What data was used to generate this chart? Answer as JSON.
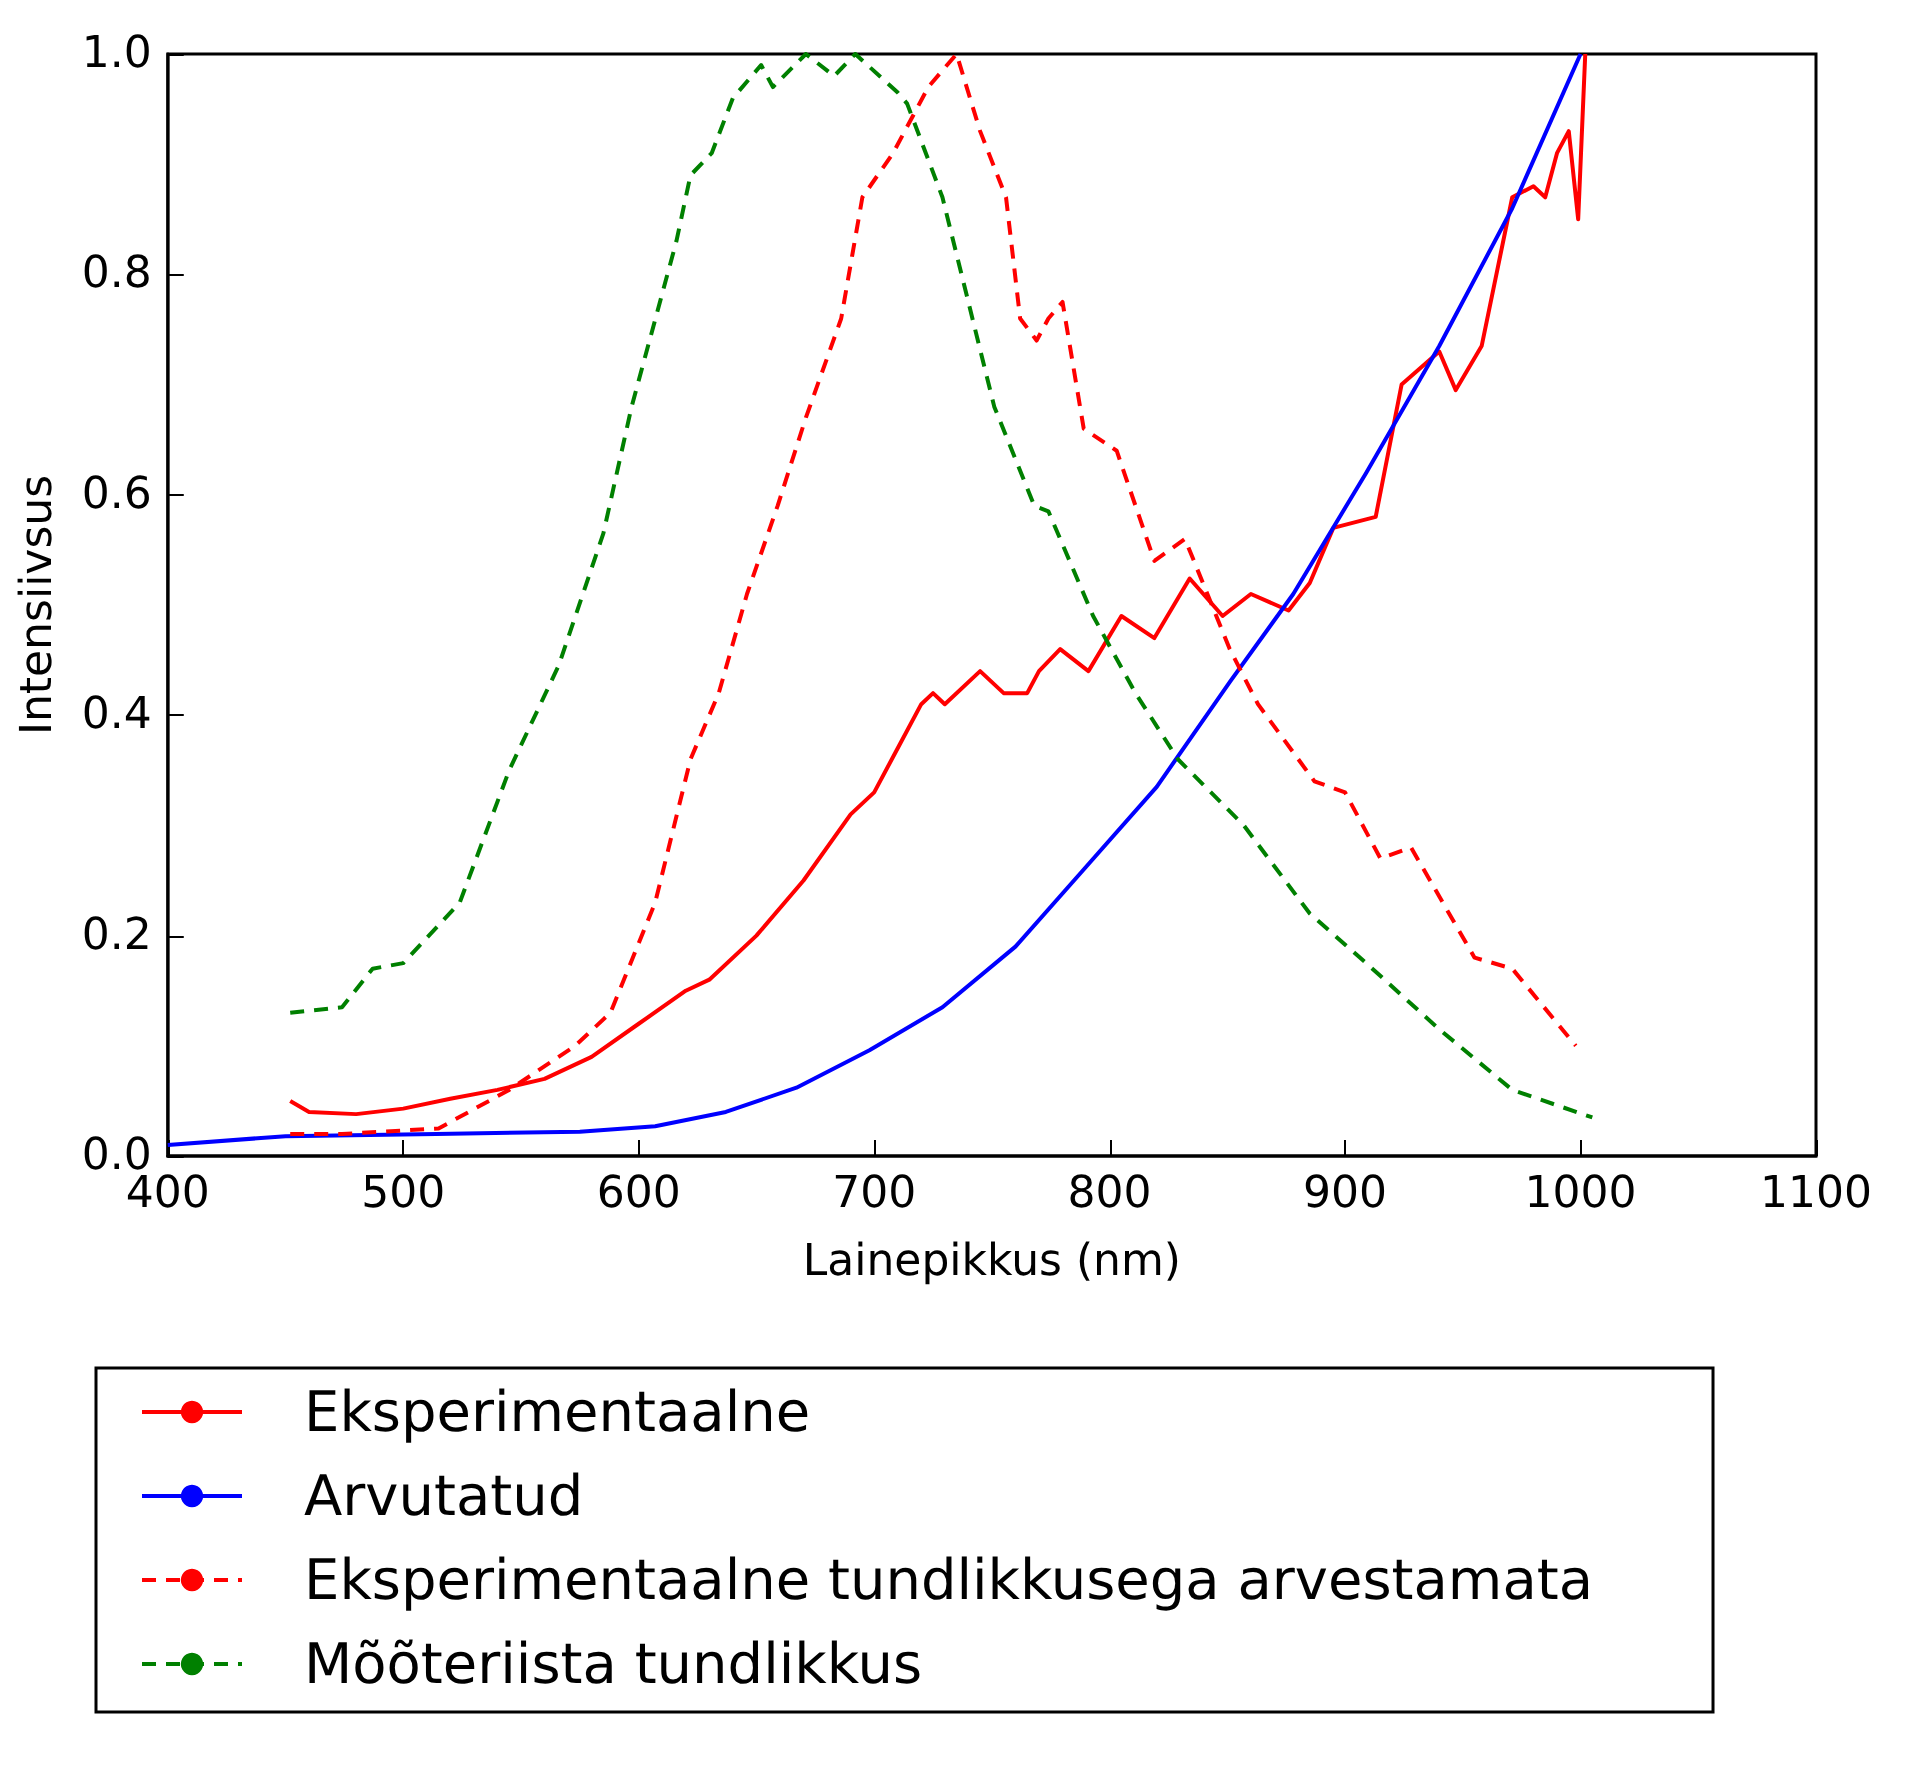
{
  "chart_data": {
    "type": "line",
    "xlabel": "Lainepikkus (nm)",
    "ylabel": "Intensiivsus",
    "xlim": [
      400,
      1100
    ],
    "xticks": [
      400,
      500,
      600,
      700,
      800,
      900,
      1000,
      1100
    ],
    "ylim": [
      0,
      1
    ],
    "yticks": [
      {
        "value": 0,
        "label": "0.0"
      },
      {
        "value": 0.2,
        "label": "0.2"
      },
      {
        "value": 0.4,
        "label": "0.4"
      },
      {
        "value": 0.6,
        "label": "0.6"
      },
      {
        "value": 0.8,
        "label": "0.8"
      },
      {
        "value": 1,
        "label": "1.0"
      }
    ],
    "grid": false,
    "legend": "bottom",
    "marker": "none",
    "series": [
      {
        "name": "Eksperimentaalne",
        "color": "#ff0000",
        "line_style": "solid",
        "x": [
          452,
          460,
          480,
          500,
          520,
          540,
          560,
          580,
          600,
          620,
          630,
          650,
          670,
          690,
          700,
          710,
          720,
          725,
          730,
          745,
          755,
          765,
          770,
          779,
          791,
          805,
          819,
          834,
          848,
          860,
          876,
          885,
          895,
          913,
          924,
          940,
          947,
          958,
          971,
          980,
          985,
          990,
          995,
          999,
          1002
        ],
        "values": [
          0.05,
          0.04,
          0.038,
          0.043,
          0.052,
          0.06,
          0.07,
          0.09,
          0.12,
          0.15,
          0.16,
          0.2,
          0.25,
          0.31,
          0.33,
          0.37,
          0.41,
          0.42,
          0.41,
          0.44,
          0.42,
          0.42,
          0.44,
          0.46,
          0.44,
          0.49,
          0.47,
          0.524,
          0.49,
          0.51,
          0.495,
          0.52,
          0.57,
          0.58,
          0.7,
          0.73,
          0.695,
          0.735,
          0.87,
          0.88,
          0.87,
          0.91,
          0.93,
          0.85,
          1.0
        ]
      },
      {
        "name": "Arvutatud",
        "color": "#0000ff",
        "line_style": "solid",
        "x": [
          400,
          450,
          514,
          575,
          607,
          637,
          667,
          698,
          729,
          760,
          789,
          820,
          851,
          878,
          909,
          940,
          971,
          1000
        ],
        "values": [
          0.01,
          0.018,
          0.02,
          0.022,
          0.027,
          0.04,
          0.062,
          0.096,
          0.135,
          0.19,
          0.26,
          0.335,
          0.43,
          0.51,
          0.62,
          0.735,
          0.86,
          1.0
        ]
      },
      {
        "name": "Eksperimentaalne tundlikkusega arvestamata",
        "color": "#ff0000",
        "line_style": "dashed",
        "x": [
          452,
          474,
          515,
          545,
          573,
          588,
          607,
          622,
          634,
          646,
          659,
          671,
          686,
          695,
          708,
          723,
          735,
          745,
          756,
          762,
          769,
          774,
          780,
          789,
          803,
          819,
          832,
          851,
          863,
          887,
          900,
          915,
          928,
          955,
          971,
          998
        ],
        "values": [
          0.02,
          0.02,
          0.025,
          0.06,
          0.1,
          0.13,
          0.23,
          0.36,
          0.42,
          0.51,
          0.59,
          0.67,
          0.76,
          0.87,
          0.91,
          0.97,
          1.0,
          0.93,
          0.87,
          0.76,
          0.74,
          0.76,
          0.775,
          0.66,
          0.64,
          0.54,
          0.56,
          0.46,
          0.41,
          0.34,
          0.33,
          0.27,
          0.28,
          0.18,
          0.17,
          0.1
        ]
      },
      {
        "name": "Mõõteriista tundlikkus",
        "color": "#008000",
        "line_style": "dashed",
        "x": [
          452,
          474,
          487,
          500,
          524,
          545,
          566,
          585,
          597,
          616,
          622,
          631,
          640,
          652,
          657,
          671,
          683,
          692,
          710,
          714,
          729,
          751,
          768,
          774,
          793,
          811,
          829,
          857,
          885,
          909,
          940,
          971,
          1005
        ],
        "values": [
          0.13,
          0.135,
          0.17,
          0.175,
          0.23,
          0.35,
          0.445,
          0.565,
          0.68,
          0.83,
          0.89,
          0.91,
          0.96,
          0.99,
          0.97,
          1.0,
          0.98,
          1.0,
          0.965,
          0.955,
          0.87,
          0.68,
          0.59,
          0.585,
          0.49,
          0.42,
          0.36,
          0.3,
          0.22,
          0.175,
          0.115,
          0.06,
          0.035
        ]
      }
    ]
  }
}
